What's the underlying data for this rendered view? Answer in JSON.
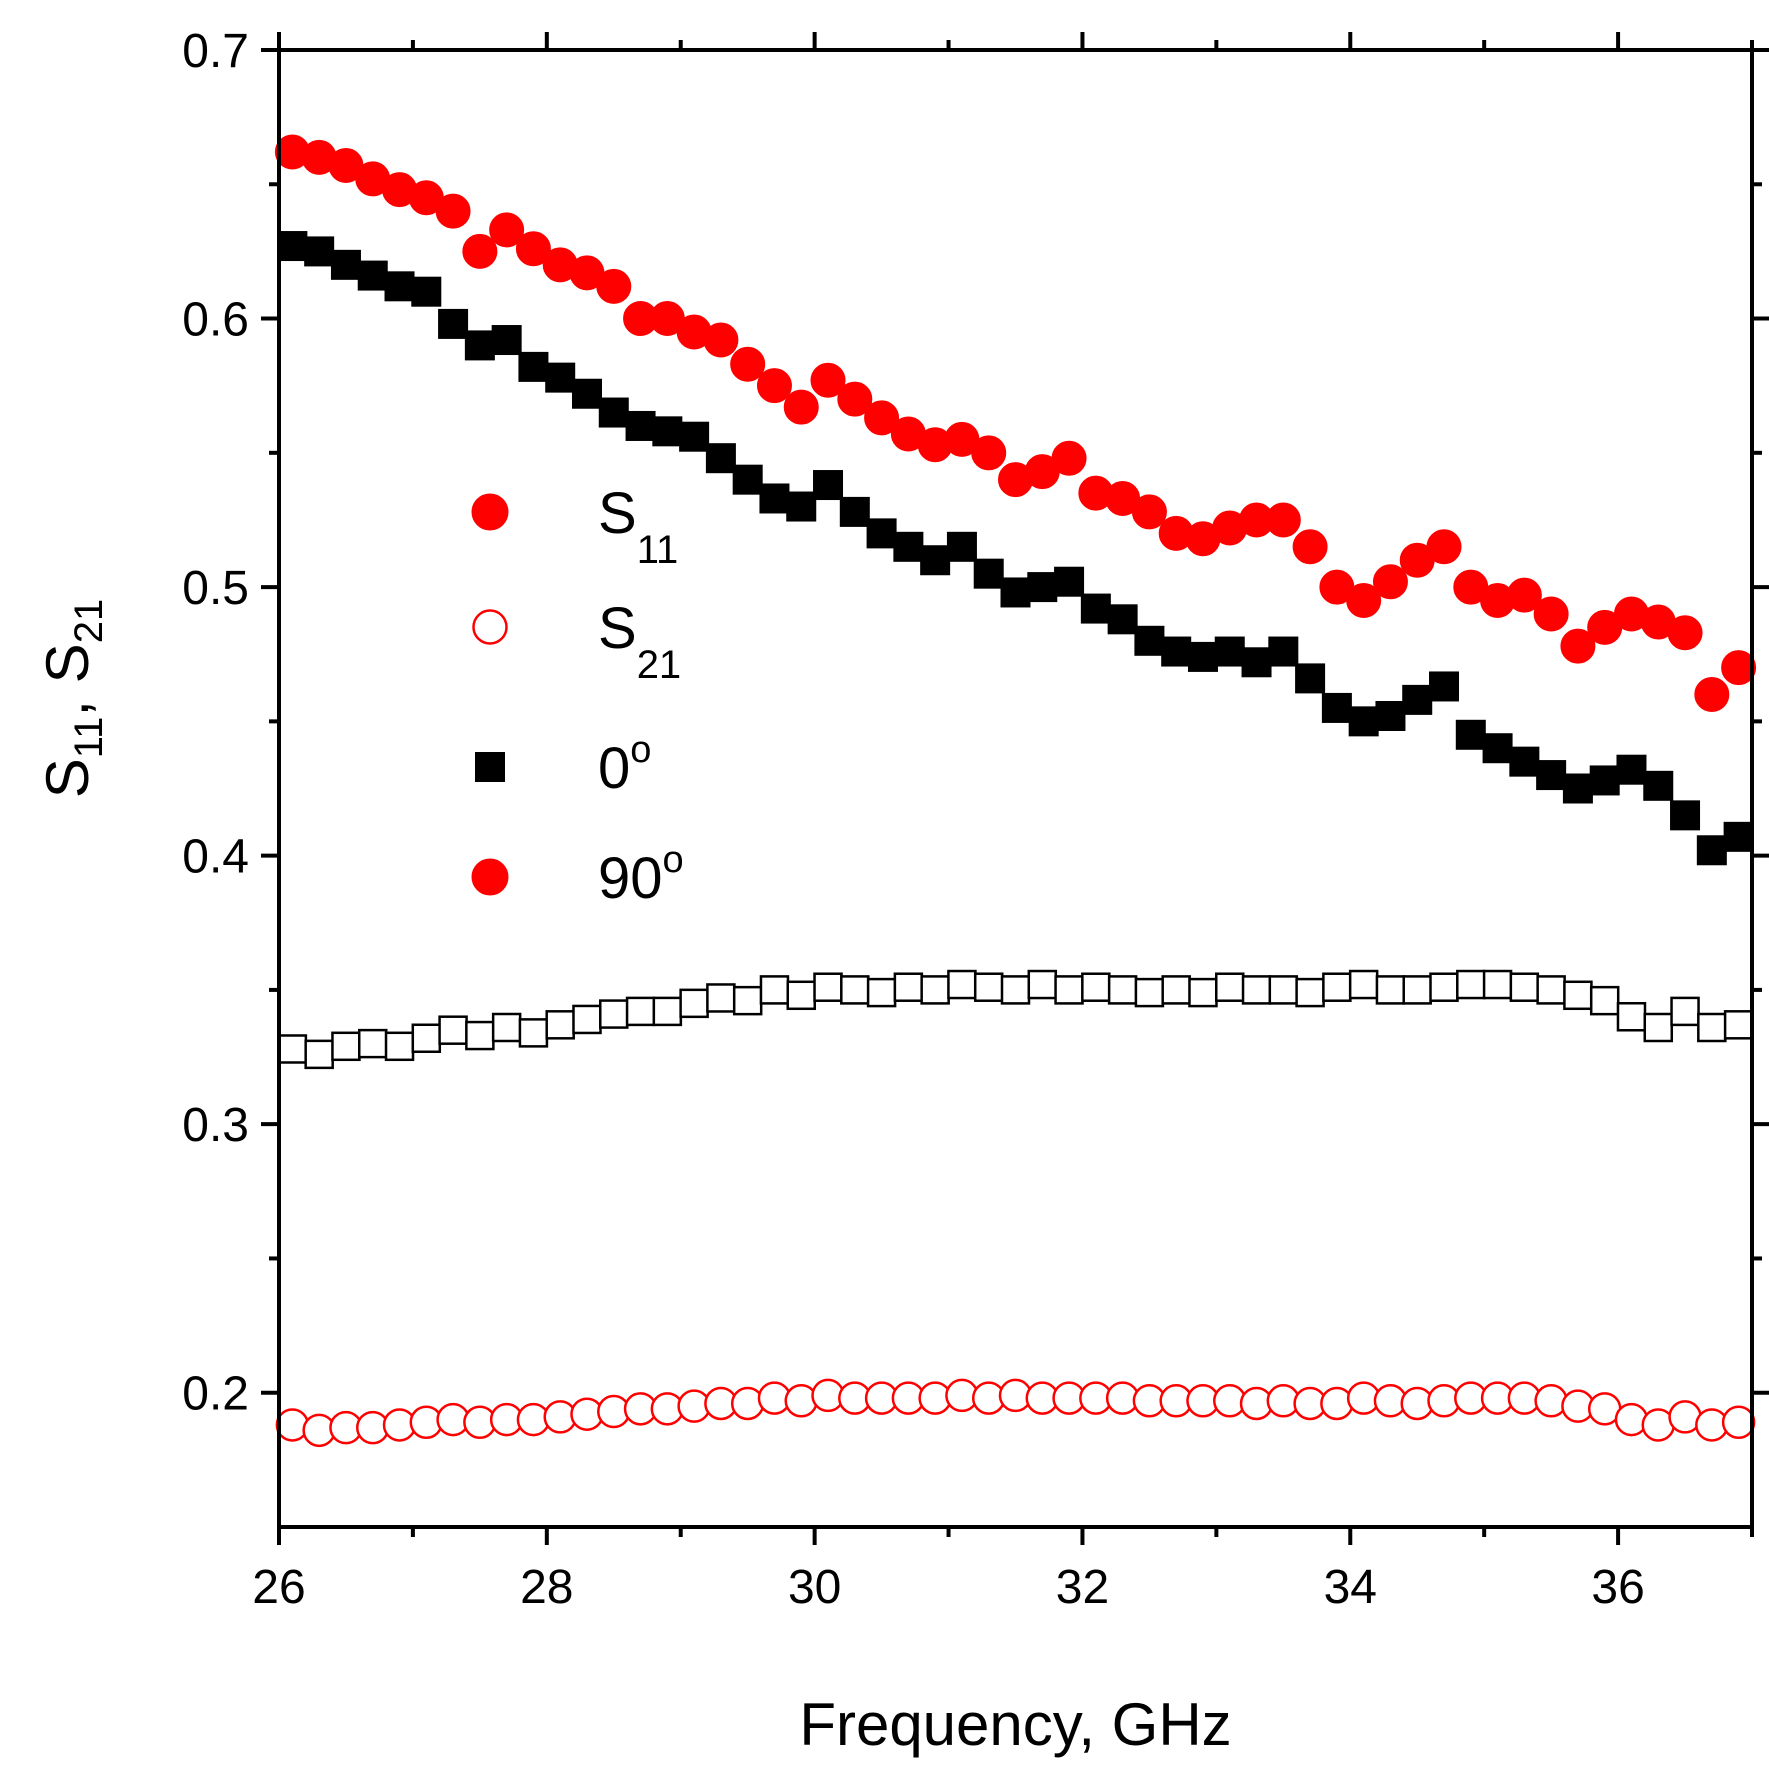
{
  "chart_data": {
    "type": "scatter",
    "xlabel": "Frequency, GHz",
    "ylabel": {
      "base1": "S",
      "sub1": "11",
      "sep": ", ",
      "base2": "S",
      "sub2": "21"
    },
    "xlim": [
      26,
      37
    ],
    "ylim": [
      0.15,
      0.7
    ],
    "xticks": [
      "26",
      "28",
      "30",
      "32",
      "34",
      "36"
    ],
    "yticks": [
      "0.2",
      "0.3",
      "0.4",
      "0.5",
      "0.6",
      "0.7"
    ],
    "legend": [
      {
        "base": "S",
        "sub": "11",
        "sup": "",
        "marker": "filled-circle",
        "color": "#ff0000"
      },
      {
        "base": "S",
        "sub": "21",
        "sup": "",
        "marker": "open-circle",
        "color": "#ff0000"
      },
      {
        "base": "0",
        "sub": "",
        "sup": "o",
        "marker": "filled-square",
        "color": "#000000"
      },
      {
        "base": "90",
        "sub": "",
        "sup": "o",
        "marker": "filled-circle",
        "color": "#ff0000"
      }
    ],
    "series": [
      {
        "name": "S11 0°",
        "marker": "filled-square",
        "color": "#000000",
        "x": [
          26.1,
          26.3,
          26.5,
          26.7,
          26.9,
          27.1,
          27.3,
          27.5,
          27.7,
          27.9,
          28.1,
          28.3,
          28.5,
          28.7,
          28.9,
          29.1,
          29.3,
          29.5,
          29.7,
          29.9,
          30.1,
          30.3,
          30.5,
          30.7,
          30.9,
          31.1,
          31.3,
          31.5,
          31.7,
          31.9,
          32.1,
          32.3,
          32.5,
          32.7,
          32.9,
          33.1,
          33.3,
          33.5,
          33.7,
          33.9,
          34.1,
          34.3,
          34.5,
          34.7,
          34.9,
          35.1,
          35.3,
          35.5,
          35.7,
          35.9,
          36.1,
          36.3,
          36.5,
          36.7,
          36.9
        ],
        "y": [
          0.627,
          0.625,
          0.62,
          0.616,
          0.612,
          0.61,
          0.598,
          0.59,
          0.592,
          0.582,
          0.578,
          0.572,
          0.565,
          0.56,
          0.558,
          0.556,
          0.548,
          0.54,
          0.533,
          0.53,
          0.538,
          0.528,
          0.52,
          0.515,
          0.51,
          0.515,
          0.505,
          0.498,
          0.5,
          0.502,
          0.492,
          0.488,
          0.48,
          0.476,
          0.474,
          0.476,
          0.472,
          0.476,
          0.466,
          0.455,
          0.45,
          0.452,
          0.458,
          0.463,
          0.445,
          0.44,
          0.435,
          0.43,
          0.425,
          0.428,
          0.432,
          0.426,
          0.415,
          0.402,
          0.407
        ]
      },
      {
        "name": "S11 90°",
        "marker": "filled-circle",
        "color": "#ff0000",
        "x": [
          26.1,
          26.3,
          26.5,
          26.7,
          26.9,
          27.1,
          27.3,
          27.5,
          27.7,
          27.9,
          28.1,
          28.3,
          28.5,
          28.7,
          28.9,
          29.1,
          29.3,
          29.5,
          29.7,
          29.9,
          30.1,
          30.3,
          30.5,
          30.7,
          30.9,
          31.1,
          31.3,
          31.5,
          31.7,
          31.9,
          32.1,
          32.3,
          32.5,
          32.7,
          32.9,
          33.1,
          33.3,
          33.5,
          33.7,
          33.9,
          34.1,
          34.3,
          34.5,
          34.7,
          34.9,
          35.1,
          35.3,
          35.5,
          35.7,
          35.9,
          36.1,
          36.3,
          36.5,
          36.7,
          36.9
        ],
        "y": [
          0.662,
          0.66,
          0.657,
          0.652,
          0.648,
          0.645,
          0.64,
          0.625,
          0.633,
          0.626,
          0.62,
          0.617,
          0.612,
          0.6,
          0.6,
          0.595,
          0.592,
          0.583,
          0.575,
          0.567,
          0.577,
          0.57,
          0.563,
          0.557,
          0.553,
          0.555,
          0.55,
          0.54,
          0.543,
          0.548,
          0.535,
          0.533,
          0.528,
          0.52,
          0.518,
          0.522,
          0.525,
          0.525,
          0.515,
          0.5,
          0.495,
          0.502,
          0.51,
          0.515,
          0.5,
          0.495,
          0.497,
          0.49,
          0.478,
          0.485,
          0.49,
          0.487,
          0.483,
          0.46,
          0.47
        ]
      },
      {
        "name": "S21 0°",
        "marker": "open-square",
        "color": "#000000",
        "x": [
          26.1,
          26.3,
          26.5,
          26.7,
          26.9,
          27.1,
          27.3,
          27.5,
          27.7,
          27.9,
          28.1,
          28.3,
          28.5,
          28.7,
          28.9,
          29.1,
          29.3,
          29.5,
          29.7,
          29.9,
          30.1,
          30.3,
          30.5,
          30.7,
          30.9,
          31.1,
          31.3,
          31.5,
          31.7,
          31.9,
          32.1,
          32.3,
          32.5,
          32.7,
          32.9,
          33.1,
          33.3,
          33.5,
          33.7,
          33.9,
          34.1,
          34.3,
          34.5,
          34.7,
          34.9,
          35.1,
          35.3,
          35.5,
          35.7,
          35.9,
          36.1,
          36.3,
          36.5,
          36.7,
          36.9
        ],
        "y": [
          0.328,
          0.326,
          0.329,
          0.33,
          0.329,
          0.332,
          0.335,
          0.333,
          0.336,
          0.334,
          0.337,
          0.339,
          0.341,
          0.342,
          0.342,
          0.345,
          0.347,
          0.346,
          0.35,
          0.348,
          0.351,
          0.35,
          0.349,
          0.351,
          0.35,
          0.352,
          0.351,
          0.35,
          0.352,
          0.35,
          0.351,
          0.35,
          0.349,
          0.35,
          0.349,
          0.351,
          0.35,
          0.35,
          0.349,
          0.351,
          0.352,
          0.35,
          0.35,
          0.351,
          0.352,
          0.352,
          0.351,
          0.35,
          0.348,
          0.346,
          0.34,
          0.336,
          0.342,
          0.336,
          0.337
        ]
      },
      {
        "name": "S21 90°",
        "marker": "open-circle",
        "color": "#ff0000",
        "x": [
          26.1,
          26.3,
          26.5,
          26.7,
          26.9,
          27.1,
          27.3,
          27.5,
          27.7,
          27.9,
          28.1,
          28.3,
          28.5,
          28.7,
          28.9,
          29.1,
          29.3,
          29.5,
          29.7,
          29.9,
          30.1,
          30.3,
          30.5,
          30.7,
          30.9,
          31.1,
          31.3,
          31.5,
          31.7,
          31.9,
          32.1,
          32.3,
          32.5,
          32.7,
          32.9,
          33.1,
          33.3,
          33.5,
          33.7,
          33.9,
          34.1,
          34.3,
          34.5,
          34.7,
          34.9,
          35.1,
          35.3,
          35.5,
          35.7,
          35.9,
          36.1,
          36.3,
          36.5,
          36.7,
          36.9
        ],
        "y": [
          0.188,
          0.186,
          0.187,
          0.187,
          0.188,
          0.189,
          0.19,
          0.189,
          0.19,
          0.19,
          0.191,
          0.192,
          0.193,
          0.194,
          0.194,
          0.195,
          0.196,
          0.196,
          0.198,
          0.197,
          0.199,
          0.198,
          0.198,
          0.198,
          0.198,
          0.199,
          0.198,
          0.199,
          0.198,
          0.198,
          0.198,
          0.198,
          0.197,
          0.197,
          0.197,
          0.197,
          0.196,
          0.197,
          0.196,
          0.196,
          0.198,
          0.197,
          0.196,
          0.197,
          0.198,
          0.198,
          0.198,
          0.197,
          0.195,
          0.194,
          0.19,
          0.188,
          0.191,
          0.188,
          0.189
        ]
      }
    ]
  }
}
